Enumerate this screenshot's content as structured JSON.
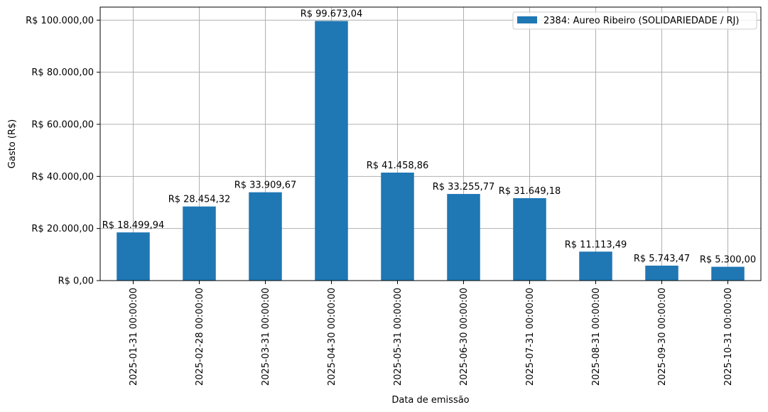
{
  "chart_data": {
    "type": "bar",
    "title": "",
    "xlabel": "Data de emissão",
    "ylabel": "Gasto (R$)",
    "ylim": [
      0,
      105000
    ],
    "yticks": [
      0,
      20000,
      40000,
      60000,
      80000,
      100000
    ],
    "ytick_labels": [
      "R$ 0,00",
      "R$ 20.000,00",
      "R$ 40.000,00",
      "R$ 60.000,00",
      "R$ 80.000,00",
      "R$ 100.000,00"
    ],
    "grid": true,
    "legend_position": "top-right",
    "categories": [
      "2025-01-31 00:00:00",
      "2025-02-28 00:00:00",
      "2025-03-31 00:00:00",
      "2025-04-30 00:00:00",
      "2025-05-31 00:00:00",
      "2025-06-30 00:00:00",
      "2025-07-31 00:00:00",
      "2025-08-31 00:00:00",
      "2025-09-30 00:00:00",
      "2025-10-31 00:00:00"
    ],
    "series": [
      {
        "name": "2384: Aureo Ribeiro (SOLIDARIEDADE / RJ)",
        "color": "#1f77b4",
        "values": [
          18499.94,
          28454.32,
          33909.67,
          99673.04,
          41458.86,
          33255.77,
          31649.18,
          11113.49,
          5743.47,
          5300.0
        ],
        "labels": [
          "R$ 18.499,94",
          "R$ 28.454,32",
          "R$ 33.909,67",
          "R$ 99.673,04",
          "R$ 41.458,86",
          "R$ 33.255,77",
          "R$ 31.649,18",
          "R$ 11.113,49",
          "R$ 5.743,47",
          "R$ 5.300,00"
        ]
      }
    ]
  }
}
